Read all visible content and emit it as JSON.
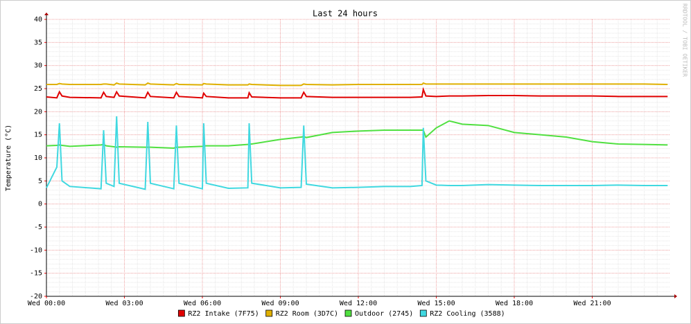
{
  "chart_data": {
    "type": "line",
    "title": "Last 24 hours",
    "y_label": "Temperature (°C)",
    "watermark": "RRDTOOL / TOBI OETIKER",
    "xlim": [
      0,
      24
    ],
    "ylim": [
      -20,
      40
    ],
    "xticks": [
      {
        "value": 0,
        "label": "Wed 00:00"
      },
      {
        "value": 3,
        "label": "Wed 03:00"
      },
      {
        "value": 6,
        "label": "Wed 06:00"
      },
      {
        "value": 9,
        "label": "Wed 09:00"
      },
      {
        "value": 12,
        "label": "Wed 12:00"
      },
      {
        "value": 15,
        "label": "Wed 15:00"
      },
      {
        "value": 18,
        "label": "Wed 18:00"
      },
      {
        "value": 21,
        "label": "Wed 21:00"
      }
    ],
    "yticks": [
      -20,
      -15,
      -10,
      -5,
      0,
      5,
      10,
      15,
      20,
      25,
      30,
      35,
      40
    ],
    "grid": true,
    "legend": "bottom",
    "x": [
      0,
      0.4,
      0.5,
      0.6,
      0.9,
      2.1,
      2.2,
      2.3,
      2.6,
      2.7,
      2.8,
      3.8,
      3.9,
      4.0,
      4.9,
      5.0,
      5.1,
      6.0,
      6.05,
      6.15,
      7.0,
      7.75,
      7.8,
      7.9,
      9.0,
      9.8,
      9.9,
      10.0,
      11,
      12,
      13,
      14,
      14.45,
      14.5,
      14.6,
      15,
      15.5,
      16,
      17,
      18,
      19,
      20,
      21,
      22,
      23,
      23.9
    ],
    "series": [
      {
        "name": "RZ2 Intake (7F75)",
        "color": "#e00000",
        "values": [
          23.2,
          23.0,
          24.3,
          23.4,
          23.1,
          23.0,
          24.2,
          23.3,
          23.1,
          24.3,
          23.4,
          23.0,
          24.2,
          23.3,
          23.0,
          24.2,
          23.3,
          23.0,
          24.0,
          23.3,
          23.0,
          23.0,
          24.1,
          23.2,
          23.0,
          23.0,
          24.2,
          23.3,
          23.1,
          23.1,
          23.1,
          23.1,
          23.2,
          24.8,
          23.4,
          23.3,
          23.4,
          23.4,
          23.5,
          23.5,
          23.4,
          23.4,
          23.4,
          23.3,
          23.3,
          23.3
        ]
      },
      {
        "name": "RZ2 Room (3D7C)",
        "color": "#e0b000",
        "values": [
          25.9,
          25.9,
          26.1,
          26.0,
          25.9,
          25.9,
          26.0,
          26.0,
          25.8,
          26.2,
          26.0,
          25.8,
          26.2,
          26.0,
          25.8,
          26.1,
          25.9,
          25.8,
          26.1,
          26.0,
          25.8,
          25.8,
          26.0,
          25.9,
          25.7,
          25.7,
          26.0,
          25.9,
          25.8,
          25.9,
          25.9,
          25.9,
          25.9,
          26.2,
          26.0,
          26.0,
          26.0,
          26.0,
          26.0,
          26.0,
          26.0,
          26.0,
          26.0,
          26.0,
          26.0,
          25.9
        ]
      },
      {
        "name": "Outdoor (2745)",
        "color": "#50e040",
        "values": [
          12.6,
          12.7,
          12.8,
          12.7,
          12.5,
          12.8,
          12.9,
          12.6,
          12.4,
          12.3,
          12.4,
          12.3,
          12.3,
          12.3,
          12.1,
          12.3,
          12.3,
          12.5,
          12.6,
          12.6,
          12.6,
          12.9,
          13.0,
          13.0,
          14.0,
          14.5,
          14.6,
          14.4,
          15.5,
          15.8,
          16.0,
          16.0,
          16.0,
          16.0,
          14.5,
          16.5,
          18.0,
          17.3,
          17.0,
          15.5,
          15.0,
          14.5,
          13.5,
          13.0,
          12.9,
          12.8
        ]
      },
      {
        "name": "RZ2 Cooling (3588)",
        "color": "#40d8e0",
        "values": [
          3.5,
          8,
          17.5,
          5,
          3.8,
          3.3,
          16,
          4.5,
          3.8,
          19,
          4.5,
          3.2,
          17.8,
          4.5,
          3.3,
          17,
          4.5,
          3.3,
          17.5,
          4.5,
          3.4,
          3.5,
          17.5,
          4.5,
          3.5,
          3.6,
          17,
          4.3,
          3.5,
          3.6,
          3.8,
          3.8,
          4.0,
          16.5,
          5,
          4.1,
          4.0,
          4.0,
          4.2,
          4.1,
          4.0,
          4.0,
          4.0,
          4.1,
          4.0,
          4.0
        ]
      }
    ]
  }
}
